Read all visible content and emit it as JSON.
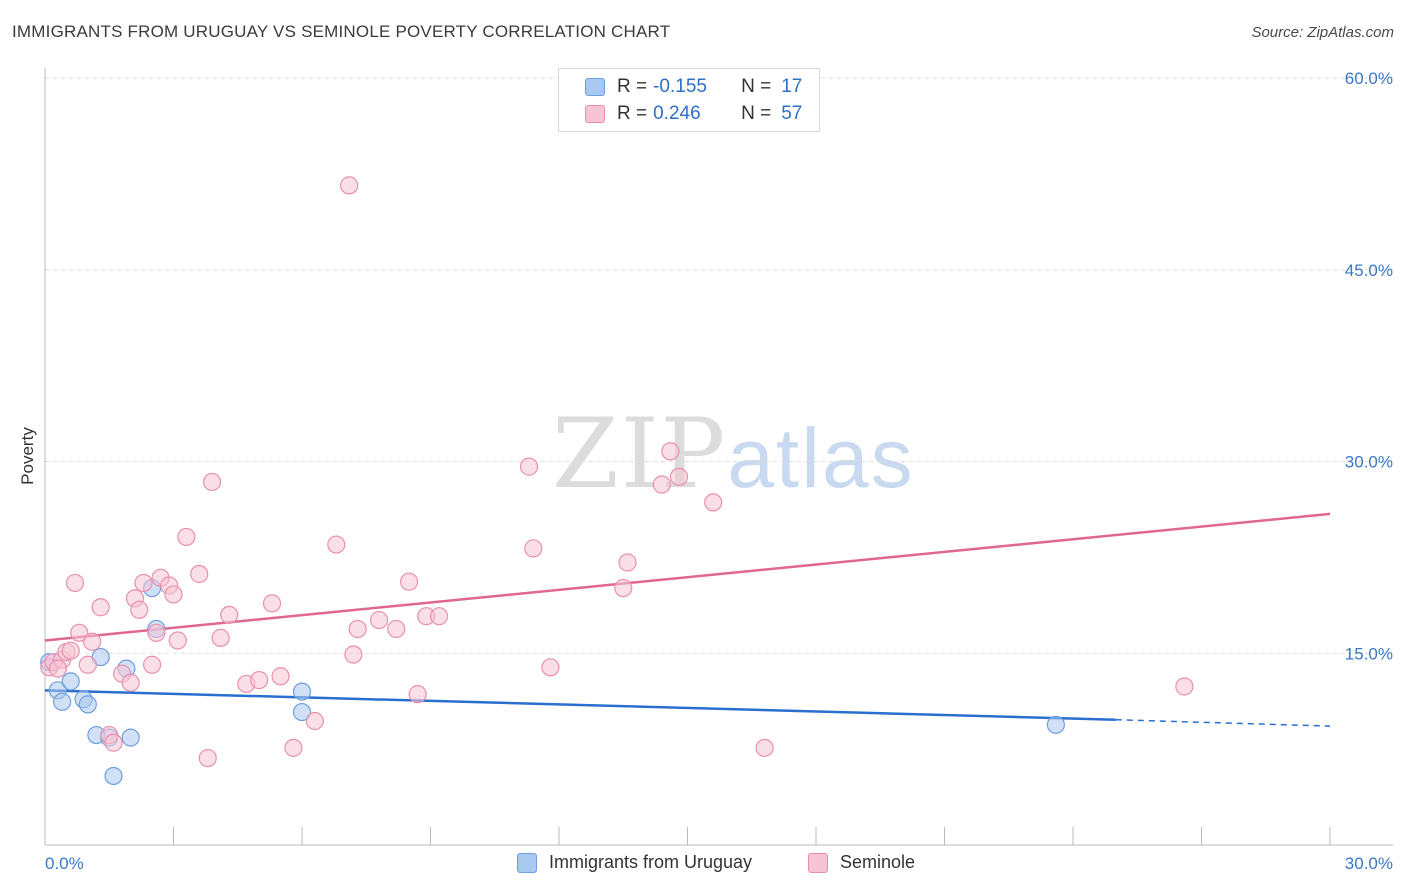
{
  "title": "IMMIGRANTS FROM URUGUAY VS SEMINOLE POVERTY CORRELATION CHART",
  "source": "Source: ZipAtlas.com",
  "watermark": {
    "zip": "ZIP",
    "atlas": "atlas"
  },
  "legend": {
    "rows": [
      {
        "r_label": "R =",
        "r_value": "-0.155",
        "n_label": "N =",
        "n_value": "17",
        "color": "#a9c8f0",
        "border": "#6f9fdc"
      },
      {
        "r_label": "R =",
        "r_value": "0.246",
        "n_label": "N =",
        "n_value": "57",
        "color": "#f7c4d4",
        "border": "#e890ad"
      }
    ]
  },
  "bottom_legend": [
    {
      "label": "Immigrants from Uruguay",
      "color": "#a9c8f0",
      "border": "#6f9fdc"
    },
    {
      "label": "Seminole",
      "color": "#f7c4d4",
      "border": "#e890ad"
    }
  ],
  "chart_data": {
    "type": "scatter",
    "title": "IMMIGRANTS FROM URUGUAY VS SEMINOLE POVERTY CORRELATION CHART",
    "xlabel": "",
    "ylabel": "Poverty",
    "xlim": [
      0,
      30
    ],
    "ylim": [
      0,
      60
    ],
    "x_tick_labels": [
      "0.0%",
      "30.0%"
    ],
    "y_ticks": [
      15,
      30,
      45,
      60
    ],
    "y_tick_labels": [
      "15.0%",
      "30.0%",
      "45.0%",
      "60.0%"
    ],
    "grid": true,
    "legend_position": "top-center",
    "series": [
      {
        "name": "Immigrants from Uruguay",
        "color": "#6f9fdc",
        "fill": "#a9c8f0",
        "line_color": "#2a6fd0",
        "trend": {
          "x0": 0,
          "y0": 12.1,
          "x1": 25.0,
          "y1": 9.8,
          "dash_to_x": 30,
          "dash_to_y": 9.3
        },
        "points": [
          [
            0.1,
            14.3
          ],
          [
            0.3,
            12.1
          ],
          [
            0.4,
            11.2
          ],
          [
            0.6,
            12.8
          ],
          [
            0.9,
            11.4
          ],
          [
            1.0,
            11.0
          ],
          [
            1.2,
            8.6
          ],
          [
            1.3,
            14.7
          ],
          [
            1.5,
            8.4
          ],
          [
            1.6,
            5.4
          ],
          [
            1.9,
            13.8
          ],
          [
            2.0,
            8.4
          ],
          [
            2.5,
            20.1
          ],
          [
            2.6,
            16.9
          ],
          [
            6.0,
            10.4
          ],
          [
            6.0,
            12.0
          ],
          [
            23.6,
            9.4
          ]
        ]
      },
      {
        "name": "Seminole",
        "color": "#e890ad",
        "fill": "#f7c4d4",
        "line_color": "#e06791",
        "trend": {
          "x0": 0,
          "y0": 16.0,
          "x1": 30,
          "y1": 25.9
        },
        "points": [
          [
            0.1,
            13.9
          ],
          [
            0.2,
            14.3
          ],
          [
            0.4,
            14.5
          ],
          [
            0.5,
            15.1
          ],
          [
            0.7,
            20.5
          ],
          [
            0.8,
            16.6
          ],
          [
            1.0,
            14.1
          ],
          [
            1.1,
            15.9
          ],
          [
            1.3,
            18.6
          ],
          [
            1.5,
            8.6
          ],
          [
            1.6,
            8.0
          ],
          [
            1.8,
            13.4
          ],
          [
            2.0,
            12.7
          ],
          [
            2.1,
            19.3
          ],
          [
            2.2,
            18.4
          ],
          [
            2.3,
            20.5
          ],
          [
            2.5,
            14.1
          ],
          [
            2.6,
            16.6
          ],
          [
            2.7,
            20.9
          ],
          [
            2.9,
            20.3
          ],
          [
            3.0,
            19.6
          ],
          [
            3.1,
            16.0
          ],
          [
            3.3,
            24.1
          ],
          [
            3.6,
            21.2
          ],
          [
            3.8,
            6.8
          ],
          [
            3.9,
            28.4
          ],
          [
            4.1,
            16.2
          ],
          [
            4.3,
            18.0
          ],
          [
            4.7,
            12.6
          ],
          [
            5.0,
            12.9
          ],
          [
            5.3,
            18.9
          ],
          [
            5.5,
            13.2
          ],
          [
            5.8,
            7.6
          ],
          [
            6.3,
            9.7
          ],
          [
            6.8,
            23.5
          ],
          [
            7.1,
            51.6
          ],
          [
            7.2,
            14.9
          ],
          [
            7.3,
            16.9
          ],
          [
            7.8,
            17.6
          ],
          [
            8.2,
            16.9
          ],
          [
            8.5,
            20.6
          ],
          [
            8.7,
            11.8
          ],
          [
            8.9,
            17.9
          ],
          [
            9.2,
            17.9
          ],
          [
            11.3,
            29.6
          ],
          [
            11.4,
            23.2
          ],
          [
            11.8,
            13.9
          ],
          [
            13.5,
            20.1
          ],
          [
            13.6,
            22.1
          ],
          [
            14.4,
            28.2
          ],
          [
            14.6,
            30.8
          ],
          [
            14.8,
            28.8
          ],
          [
            15.6,
            26.8
          ],
          [
            16.8,
            7.6
          ],
          [
            26.6,
            12.4
          ],
          [
            0.3,
            13.8
          ],
          [
            0.6,
            15.2
          ]
        ]
      }
    ]
  }
}
